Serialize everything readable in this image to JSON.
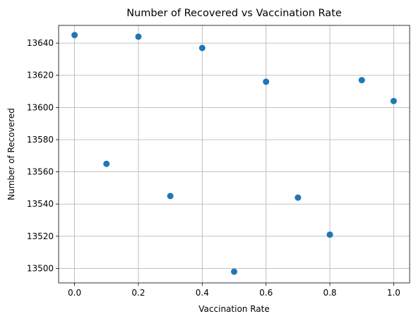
{
  "chart_data": {
    "type": "scatter",
    "title": "Number of Recovered vs Vaccination Rate",
    "xlabel": "Vaccination Rate",
    "ylabel": "Number of Recovered",
    "x": [
      0.0,
      0.1,
      0.2,
      0.3,
      0.4,
      0.5,
      0.6,
      0.7,
      0.8,
      0.9,
      1.0
    ],
    "y": [
      13645,
      13565,
      13644,
      13545,
      13637,
      13498,
      13616,
      13544,
      13521,
      13617,
      13604
    ],
    "xlim": [
      -0.05,
      1.05
    ],
    "ylim": [
      13491,
      13651
    ],
    "xticks": [
      0.0,
      0.2,
      0.4,
      0.6,
      0.8,
      1.0
    ],
    "xtick_labels": [
      "0.0",
      "0.2",
      "0.4",
      "0.6",
      "0.8",
      "1.0"
    ],
    "yticks": [
      13500,
      13520,
      13540,
      13560,
      13580,
      13600,
      13620,
      13640
    ],
    "ytick_labels": [
      "13500",
      "13520",
      "13540",
      "13560",
      "13580",
      "13600",
      "13620",
      "13640"
    ],
    "grid": true,
    "marker_color": "#1f77b4"
  }
}
